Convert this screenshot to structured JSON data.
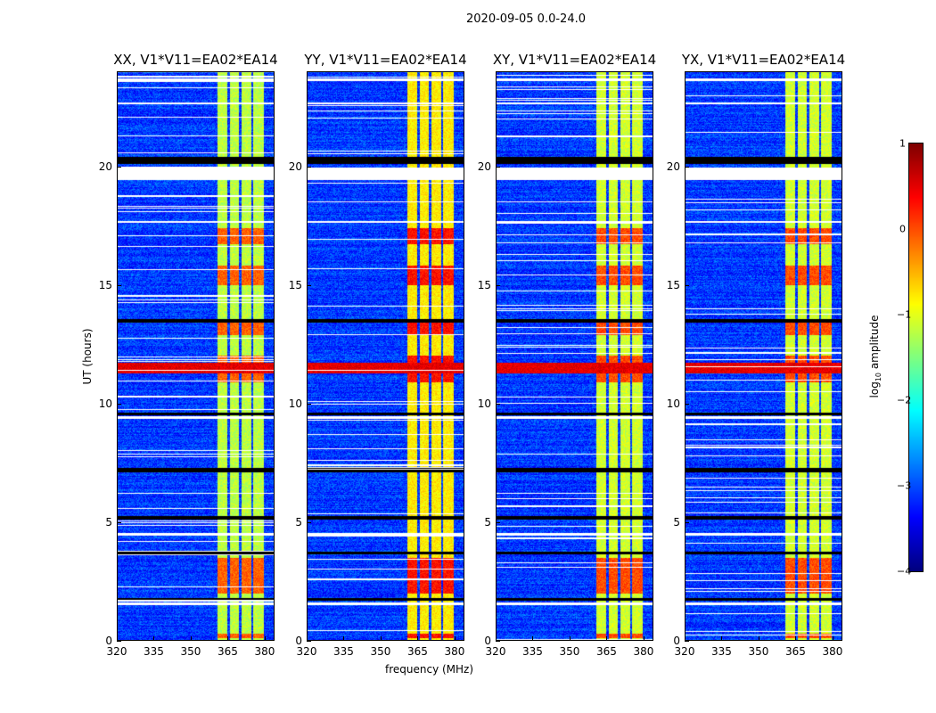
{
  "suptitle": "2020-09-05 0.0-24.0",
  "chart_data": {
    "type": "heatmap",
    "title": "2020-09-05 0.0-24.0",
    "xlabel": "frequency (MHz)",
    "ylabel": "UT (hours)",
    "xlim": [
      320,
      384
    ],
    "ylim": [
      0,
      24
    ],
    "xticks": [
      "320",
      "335",
      "350",
      "365",
      "380"
    ],
    "yticks": [
      "0",
      "5",
      "10",
      "15",
      "20"
    ],
    "colorbar": {
      "label_prefix": "log",
      "label_sub": "10",
      "label_suffix": " amplitude",
      "range": [
        -4,
        1
      ],
      "ticks": [
        "1",
        "0",
        "−1",
        "−2",
        "−3",
        "−4"
      ],
      "colormap": "jet"
    },
    "panels": [
      {
        "title": "XX, V1*V11=EA02*EA14",
        "strong_rfi_hour": 11.5,
        "band_level": -1.2
      },
      {
        "title": "YY, V1*V11=EA02*EA14",
        "strong_rfi_hour": 11.5,
        "band_level": -0.8
      },
      {
        "title": "XY, V1*V11=EA02*EA14",
        "strong_rfi_hour": 11.5,
        "band_level": -1.1
      },
      {
        "title": "YX, V1*V11=EA02*EA14",
        "strong_rfi_hour": 11.5,
        "band_level": -1.1
      }
    ],
    "background_level": -3.1,
    "bright_channels_mhz": [
      [
        361,
        365
      ],
      [
        366,
        369.5
      ],
      [
        370.5,
        374.5
      ],
      [
        375.5,
        379.5
      ]
    ],
    "flagged_hours": [
      [
        1.5,
        1.6
      ],
      [
        4.45,
        4.55
      ],
      [
        9.35,
        9.45
      ],
      [
        19.4,
        19.95
      ],
      [
        17.6,
        17.7
      ],
      [
        22.6,
        22.7
      ],
      [
        23.6,
        23.7
      ]
    ],
    "zero_hours": [
      [
        20.1,
        20.4
      ],
      [
        13.4,
        13.55
      ],
      [
        9.5,
        9.6
      ],
      [
        7.1,
        7.3
      ],
      [
        5.1,
        5.25
      ],
      [
        3.65,
        3.75
      ],
      [
        1.7,
        1.8
      ]
    ],
    "high_band_hours": [
      [
        15,
        15.8
      ],
      [
        12.9,
        13.4
      ],
      [
        10.9,
        12
      ],
      [
        2,
        3.5
      ],
      [
        0.1,
        0.3
      ],
      [
        16.7,
        17.4
      ]
    ]
  }
}
